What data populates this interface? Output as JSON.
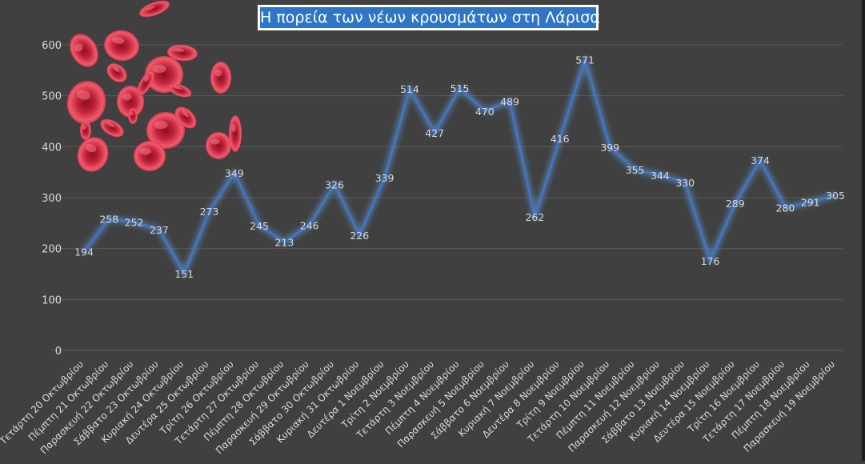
{
  "chart_data": {
    "type": "line",
    "title": "Η πορεία των νέων κρουσμάτων στη Λάρισα",
    "categories": [
      "Τετάρτη 20 Οκτωβρίου",
      "Πέμπτη 21 Οκτωβρίου",
      "Παρασκευή 22 Οκτωβρίου",
      "Σάββατο 23 Οκτωβρίου",
      "Κυριακή 24 Οκτωβρίου",
      "Δευτέρα 25 Οκτωβρίου",
      "Τρίτη 26 Οκτωβρίου",
      "Τετάρτη 27 Οκτωβρίου",
      "Πέμπτη 28 Οκτωβρίου",
      "Παρασκευή 29 Οκτωβρίου",
      "Σάββατο 30 Οκτωβρίου",
      "Κυριακή 31 Οκτωβρίου",
      "Δευτέρα 1 Νοεμβρίου",
      "Τρίτη 2 Νοεμβρίου",
      "Τετάρτη 3 Νοεμβρίου",
      "Πέμπτη 4 Νοεμβρίου",
      "Παρασκευή 5 Νοεμβρίου",
      "Σάββατο 6 Νοεμβρίου",
      "Κυριακή 7 Νοεμβρίου",
      "Δευτέρα 8 Νοεμβρίου",
      "Τρίτη 9 Νοεμβρίου",
      "Τετάρτη 10 Νοεμβρίου",
      "Πέμπτη 11 Νοεμβρίου",
      "Παρασκευή 12 Νοεμβρίου",
      "Σάββατο 13 Νοεμβρίου",
      "Κυριακή 14 Νοεμβρίου",
      "Δευτέρα 15 Νοεμβρίου",
      "Τρίτη 16 Νοεμβρίου",
      "Τετάρτη 17 Νοεμβρίου",
      "Πέμπτη 18 Νοεμβρίου",
      "Παρασκευή 19 Νοεμβρίου"
    ],
    "series": [
      {
        "values": [
          194,
          258,
          252,
          237,
          151,
          273,
          349,
          245,
          213,
          246,
          326,
          226,
          339,
          514,
          427,
          515,
          470,
          489,
          262,
          416,
          571,
          399,
          355,
          344,
          330,
          176,
          289,
          374,
          280,
          291,
          305
        ]
      }
    ],
    "ylim": [
      0,
      600
    ],
    "yticks": [
      0,
      100,
      200,
      300,
      400,
      500,
      600
    ],
    "grid": true,
    "legend": "none",
    "data_labels": true,
    "colors": {
      "background": "#404040",
      "line": "#4472c4",
      "glow": "#5b9bd5",
      "text": "#d9d9d9",
      "grid": "#595959",
      "title_box": "#2e75c5",
      "decoration": "#c0223a"
    },
    "decoration": "red-blood-cells-image"
  }
}
